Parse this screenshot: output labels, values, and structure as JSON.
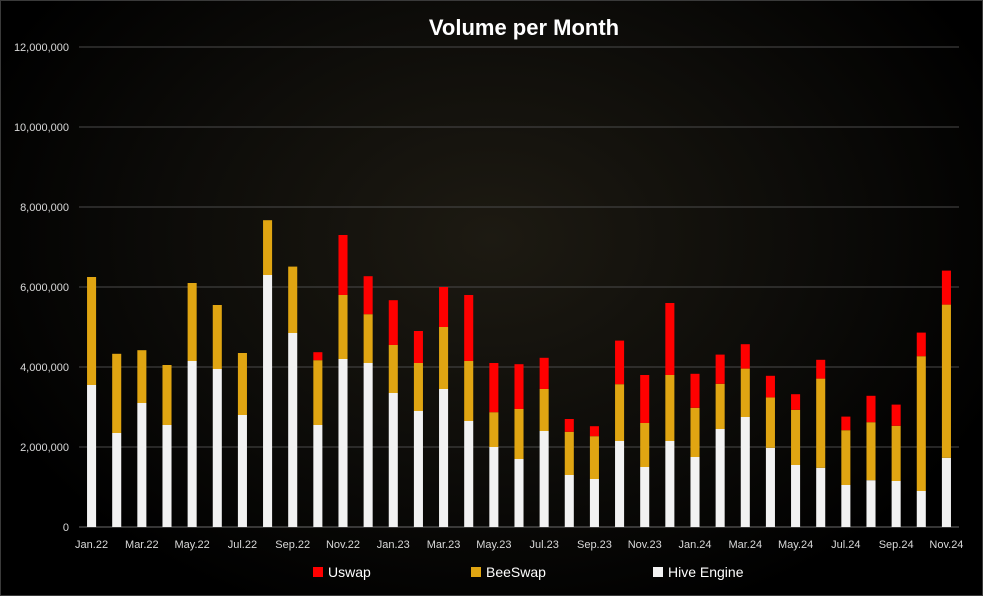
{
  "chart_data": {
    "type": "bar",
    "stacked": true,
    "title": "Volume per Month",
    "xlabel": "",
    "ylabel": "",
    "ylim": [
      0,
      12000000
    ],
    "yticks": [
      0,
      2000000,
      4000000,
      6000000,
      8000000,
      10000000,
      12000000
    ],
    "ytick_labels": [
      "0",
      "2,000,000",
      "4,000,000",
      "6,000,000",
      "8,000,000",
      "10,000,000",
      "12,000,000"
    ],
    "grid": true,
    "legend_position": "bottom",
    "categories": [
      "Jan.22",
      "Feb.22",
      "Mar.22",
      "Apr.22",
      "May.22",
      "Jun.22",
      "Jul.22",
      "Aug.22",
      "Sep.22",
      "Oct.22",
      "Nov.22",
      "Dec.22",
      "Jan.23",
      "Feb.23",
      "Mar.23",
      "Apr.23",
      "May.23",
      "Jun.23",
      "Jul.23",
      "Aug.23",
      "Sep.23",
      "Oct.23",
      "Nov.23",
      "Dec.23",
      "Jan.24",
      "Feb.24",
      "Mar.24",
      "Apr.24",
      "May.24",
      "Jun.24",
      "Jul.24",
      "Aug.24",
      "Sep.24",
      "Oct.24",
      "Nov.24"
    ],
    "xtick_labels": [
      "Jan.22",
      "",
      "Mar.22",
      "",
      "May.22",
      "",
      "Jul.22",
      "",
      "Sep.22",
      "",
      "Nov.22",
      "",
      "Jan.23",
      "",
      "Mar.23",
      "",
      "May.23",
      "",
      "Jul.23",
      "",
      "Sep.23",
      "",
      "Nov.23",
      "",
      "Jan.24",
      "",
      "Mar.24",
      "",
      "May.24",
      "",
      "Jul.24",
      "",
      "Sep.24",
      "",
      "Nov.24"
    ],
    "series": [
      {
        "name": "Hive Engine",
        "color": "#f2f2f2",
        "values": [
          3550000,
          2350000,
          3100000,
          2550000,
          4150000,
          3950000,
          2800000,
          6300000,
          4850000,
          2550000,
          4200000,
          4100000,
          3350000,
          2900000,
          3450000,
          2650000,
          2000000,
          1700000,
          2400000,
          1300000,
          1200000,
          2150000,
          1500000,
          2150000,
          1750000,
          2450000,
          2750000,
          1980000,
          1550000,
          1480000,
          1050000,
          1170000,
          1150000,
          900000,
          1730000
        ]
      },
      {
        "name": "BeeSwap",
        "color": "#e0a512",
        "values": [
          2700000,
          1980000,
          1320000,
          1500000,
          1950000,
          1600000,
          1550000,
          1370000,
          1660000,
          1620000,
          1600000,
          1220000,
          1200000,
          1200000,
          1550000,
          1500000,
          870000,
          1250000,
          1050000,
          1080000,
          1070000,
          1420000,
          1100000,
          1650000,
          1230000,
          1130000,
          1210000,
          1260000,
          1380000,
          2230000,
          1370000,
          1450000,
          1380000,
          3370000,
          3830000
        ]
      },
      {
        "name": "Uswap",
        "color": "#ff0000",
        "values": [
          0,
          0,
          0,
          0,
          0,
          0,
          0,
          0,
          0,
          200000,
          1500000,
          950000,
          1120000,
          800000,
          1000000,
          1650000,
          1230000,
          1120000,
          780000,
          320000,
          250000,
          1090000,
          1200000,
          1800000,
          850000,
          730000,
          610000,
          540000,
          390000,
          470000,
          340000,
          660000,
          530000,
          590000,
          850000
        ]
      }
    ],
    "legend": [
      "Uswap",
      "BeeSwap",
      "Hive Engine"
    ]
  }
}
